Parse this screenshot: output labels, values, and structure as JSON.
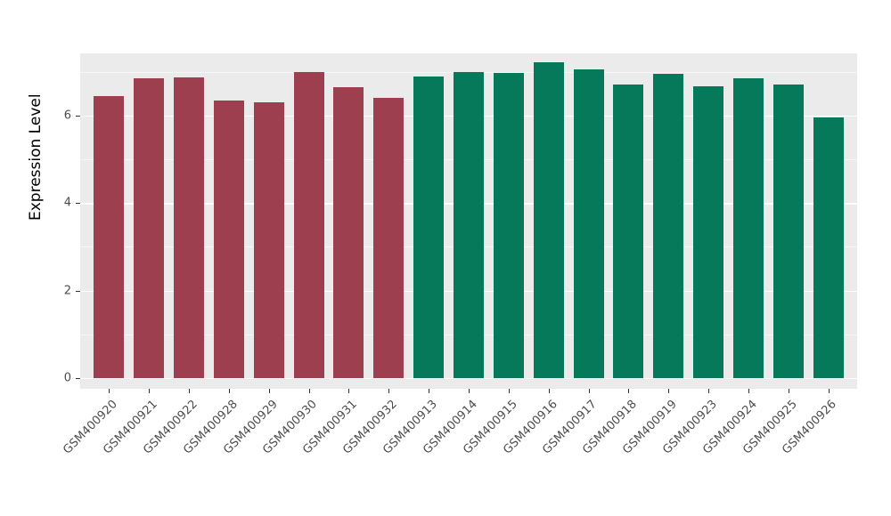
{
  "chart_data": {
    "type": "bar",
    "title": "",
    "xlabel": "",
    "ylabel": "Expression Level",
    "ylim": [
      0,
      7.4
    ],
    "yticks": [
      0,
      2,
      4,
      6
    ],
    "yticks_minor": [
      1,
      3,
      5,
      7
    ],
    "grid": true,
    "legend_position": "none",
    "panel_background": "#ebebeb",
    "categories": [
      "GSM400920",
      "GSM400921",
      "GSM400922",
      "GSM400928",
      "GSM400929",
      "GSM400930",
      "GSM400931",
      "GSM400932",
      "GSM400913",
      "GSM400914",
      "GSM400915",
      "GSM400916",
      "GSM400917",
      "GSM400918",
      "GSM400919",
      "GSM400923",
      "GSM400924",
      "GSM400925",
      "GSM400926"
    ],
    "values": [
      6.45,
      6.85,
      6.88,
      6.35,
      6.3,
      7.0,
      6.65,
      6.4,
      6.9,
      7.0,
      6.97,
      7.22,
      7.05,
      6.7,
      6.95,
      6.67,
      6.85,
      6.7,
      5.95
    ],
    "groups": [
      "red",
      "red",
      "red",
      "red",
      "red",
      "red",
      "red",
      "red",
      "green",
      "green",
      "green",
      "green",
      "green",
      "green",
      "green",
      "green",
      "green",
      "green",
      "green"
    ],
    "group_colors": {
      "red": "#9e3f4f",
      "green": "#06795a"
    }
  }
}
